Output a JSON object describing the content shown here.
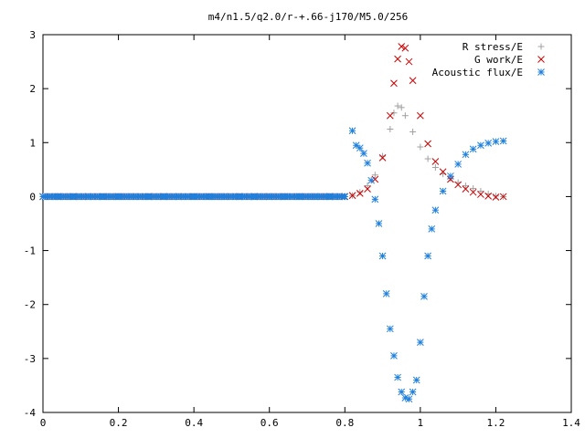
{
  "chart_data": {
    "type": "scatter",
    "title": "m4/n1.5/q2.0/r-+.66-j170/M5.0/256",
    "xlabel": "",
    "ylabel": "",
    "xlim": [
      0,
      1.4
    ],
    "ylim": [
      -4,
      3
    ],
    "xticks": [
      "0",
      "0.2",
      "0.4",
      "0.6",
      "0.8",
      "1",
      "1.2",
      "1.4"
    ],
    "yticks": [
      "3",
      "2",
      "1",
      "0",
      "-1",
      "-2",
      "-3",
      "-4"
    ],
    "grid": false,
    "legend_position": "top-right",
    "series": [
      {
        "name": "R stress/E",
        "color": "#a0a0a0",
        "marker": "plus",
        "points": [
          [
            0.0,
            0
          ],
          [
            0.04,
            0
          ],
          [
            0.08,
            0
          ],
          [
            0.12,
            0
          ],
          [
            0.16,
            0
          ],
          [
            0.2,
            0
          ],
          [
            0.24,
            0
          ],
          [
            0.28,
            0
          ],
          [
            0.32,
            0
          ],
          [
            0.36,
            0
          ],
          [
            0.4,
            0
          ],
          [
            0.44,
            0
          ],
          [
            0.48,
            0
          ],
          [
            0.52,
            0
          ],
          [
            0.56,
            0
          ],
          [
            0.6,
            0
          ],
          [
            0.64,
            0
          ],
          [
            0.68,
            0
          ],
          [
            0.72,
            0
          ],
          [
            0.76,
            0
          ],
          [
            0.8,
            0
          ],
          [
            0.82,
            0.02
          ],
          [
            0.84,
            0.08
          ],
          [
            0.86,
            0.2
          ],
          [
            0.88,
            0.4
          ],
          [
            0.9,
            0.75
          ],
          [
            0.92,
            1.25
          ],
          [
            0.93,
            1.55
          ],
          [
            0.94,
            1.68
          ],
          [
            0.95,
            1.65
          ],
          [
            0.96,
            1.5
          ],
          [
            0.98,
            1.2
          ],
          [
            1.0,
            0.92
          ],
          [
            1.02,
            0.7
          ],
          [
            1.04,
            0.54
          ],
          [
            1.06,
            0.42
          ],
          [
            1.08,
            0.33
          ],
          [
            1.1,
            0.26
          ],
          [
            1.12,
            0.2
          ],
          [
            1.14,
            0.15
          ],
          [
            1.16,
            0.1
          ],
          [
            1.18,
            0.05
          ],
          [
            1.2,
            0.01
          ],
          [
            1.22,
            0.0
          ]
        ]
      },
      {
        "name": "G work/E",
        "color": "#cc0000",
        "marker": "cross",
        "points": [
          [
            0.0,
            0
          ],
          [
            0.04,
            0
          ],
          [
            0.08,
            0
          ],
          [
            0.12,
            0
          ],
          [
            0.16,
            0
          ],
          [
            0.2,
            0
          ],
          [
            0.24,
            0
          ],
          [
            0.28,
            0
          ],
          [
            0.32,
            0
          ],
          [
            0.36,
            0
          ],
          [
            0.4,
            0
          ],
          [
            0.44,
            0
          ],
          [
            0.48,
            0
          ],
          [
            0.52,
            0
          ],
          [
            0.56,
            0
          ],
          [
            0.6,
            0
          ],
          [
            0.64,
            0
          ],
          [
            0.68,
            0
          ],
          [
            0.72,
            0
          ],
          [
            0.76,
            0
          ],
          [
            0.8,
            0
          ],
          [
            0.82,
            0.02
          ],
          [
            0.84,
            0.06
          ],
          [
            0.86,
            0.14
          ],
          [
            0.88,
            0.32
          ],
          [
            0.9,
            0.72
          ],
          [
            0.92,
            1.5
          ],
          [
            0.93,
            2.1
          ],
          [
            0.94,
            2.55
          ],
          [
            0.95,
            2.78
          ],
          [
            0.96,
            2.75
          ],
          [
            0.97,
            2.5
          ],
          [
            0.98,
            2.15
          ],
          [
            1.0,
            1.5
          ],
          [
            1.02,
            0.98
          ],
          [
            1.04,
            0.65
          ],
          [
            1.06,
            0.46
          ],
          [
            1.08,
            0.32
          ],
          [
            1.1,
            0.22
          ],
          [
            1.12,
            0.14
          ],
          [
            1.14,
            0.08
          ],
          [
            1.16,
            0.04
          ],
          [
            1.18,
            0.01
          ],
          [
            1.2,
            -0.01
          ],
          [
            1.22,
            0.0
          ]
        ]
      },
      {
        "name": "Acoustic flux/E",
        "color": "#1f80dc",
        "marker": "star",
        "points": [
          [
            0.0,
            0
          ],
          [
            0.04,
            0
          ],
          [
            0.08,
            0
          ],
          [
            0.12,
            0
          ],
          [
            0.16,
            0
          ],
          [
            0.2,
            0
          ],
          [
            0.24,
            0
          ],
          [
            0.28,
            0
          ],
          [
            0.32,
            0
          ],
          [
            0.36,
            0
          ],
          [
            0.4,
            0
          ],
          [
            0.44,
            0
          ],
          [
            0.48,
            0
          ],
          [
            0.52,
            0
          ],
          [
            0.56,
            0
          ],
          [
            0.6,
            0
          ],
          [
            0.64,
            0
          ],
          [
            0.68,
            0
          ],
          [
            0.72,
            0
          ],
          [
            0.76,
            0
          ],
          [
            0.8,
            0
          ],
          [
            0.82,
            1.22
          ],
          [
            0.83,
            0.95
          ],
          [
            0.84,
            0.9
          ],
          [
            0.85,
            0.8
          ],
          [
            0.86,
            0.62
          ],
          [
            0.87,
            0.3
          ],
          [
            0.88,
            -0.05
          ],
          [
            0.89,
            -0.5
          ],
          [
            0.9,
            -1.1
          ],
          [
            0.91,
            -1.8
          ],
          [
            0.92,
            -2.45
          ],
          [
            0.93,
            -2.95
          ],
          [
            0.94,
            -3.35
          ],
          [
            0.95,
            -3.62
          ],
          [
            0.96,
            -3.73
          ],
          [
            0.97,
            -3.75
          ],
          [
            0.98,
            -3.62
          ],
          [
            0.99,
            -3.4
          ],
          [
            1.0,
            -2.7
          ],
          [
            1.01,
            -1.85
          ],
          [
            1.02,
            -1.1
          ],
          [
            1.03,
            -0.6
          ],
          [
            1.04,
            -0.25
          ],
          [
            1.06,
            0.1
          ],
          [
            1.08,
            0.38
          ],
          [
            1.1,
            0.6
          ],
          [
            1.12,
            0.78
          ],
          [
            1.14,
            0.88
          ],
          [
            1.16,
            0.95
          ],
          [
            1.18,
            0.99
          ],
          [
            1.2,
            1.02
          ],
          [
            1.22,
            1.03
          ]
        ]
      }
    ]
  }
}
